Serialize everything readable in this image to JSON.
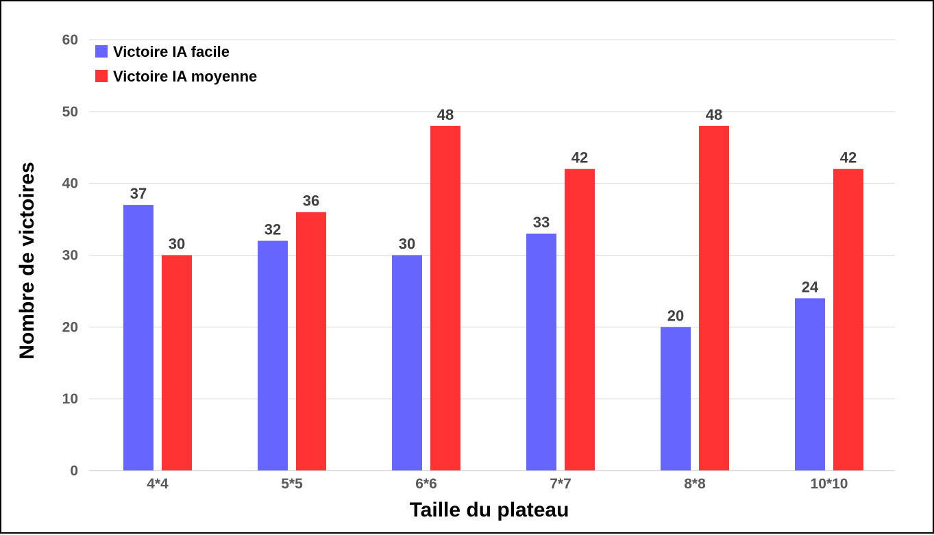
{
  "chart_data": {
    "type": "bar",
    "title": "",
    "xlabel": "Taille du plateau",
    "ylabel": "Nombre de victoires",
    "categories": [
      "4*4",
      "5*5",
      "6*6",
      "7*7",
      "8*8",
      "10*10"
    ],
    "series": [
      {
        "name": "Victoire IA facile",
        "color": "#6666ff",
        "values": [
          37,
          32,
          30,
          33,
          20,
          24
        ]
      },
      {
        "name": "Victoire IA moyenne",
        "color": "#ff3333",
        "values": [
          30,
          36,
          48,
          42,
          48,
          42
        ]
      }
    ],
    "ylim": [
      0,
      60
    ],
    "yticks": [
      0,
      10,
      20,
      30,
      40,
      50,
      60
    ],
    "grid": true,
    "legend_position": "top-left",
    "data_labels": true
  }
}
